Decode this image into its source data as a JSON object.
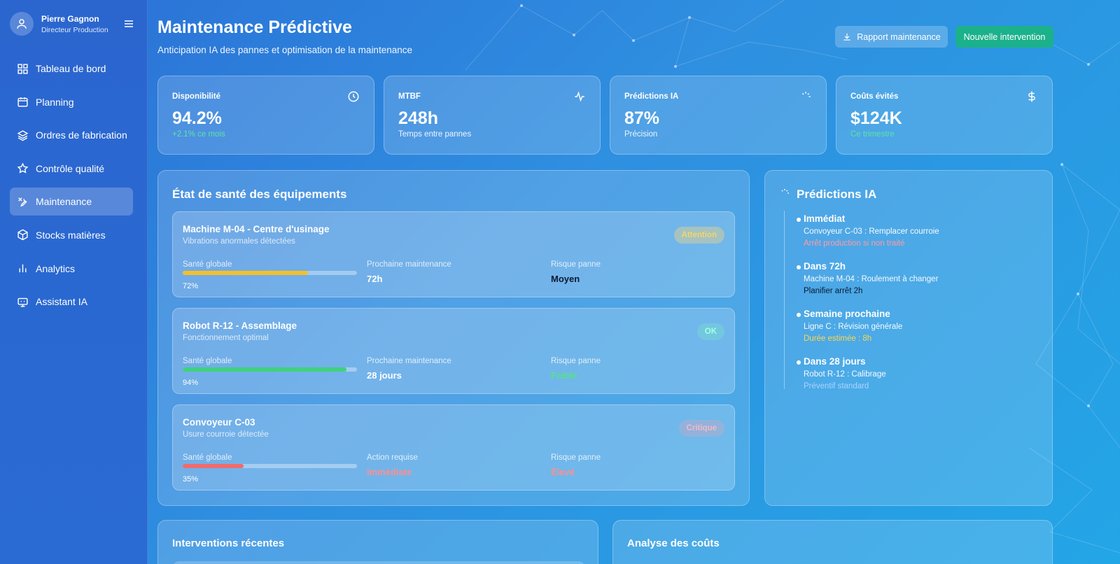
{
  "user": {
    "name": "Pierre Gagnon",
    "role": "Directeur Production"
  },
  "nav": [
    {
      "label": "Tableau de bord",
      "icon": "grid-icon"
    },
    {
      "label": "Planning",
      "icon": "calendar-icon"
    },
    {
      "label": "Ordres de fabrication",
      "icon": "layers-icon"
    },
    {
      "label": "Contrôle qualité",
      "icon": "star-icon"
    },
    {
      "label": "Maintenance",
      "icon": "wrench-icon",
      "active": true
    },
    {
      "label": "Stocks matières",
      "icon": "box-icon"
    },
    {
      "label": "Analytics",
      "icon": "bar-chart-icon"
    },
    {
      "label": "Assistant IA",
      "icon": "bot-icon"
    }
  ],
  "header": {
    "title": "Maintenance Prédictive",
    "subtitle": "Anticipation IA des pannes et optimisation de la maintenance",
    "report_button": "Rapport maintenance",
    "new_button": "Nouvelle intervention"
  },
  "stats": [
    {
      "label": "Disponibilité",
      "value": "94.2%",
      "sub": "+2.1% ce mois",
      "icon": "clock-icon"
    },
    {
      "label": "MTBF",
      "value": "248h",
      "sub": "Temps entre pannes",
      "icon": "activity-icon"
    },
    {
      "label": "Prédictions IA",
      "value": "87%",
      "sub": "Précision",
      "icon": "loader-icon"
    },
    {
      "label": "Coûts évités",
      "value": "$124K",
      "sub": "Ce trimestre",
      "icon": "dollar-icon"
    }
  ],
  "health": {
    "title": "État de santé des équipements",
    "items": [
      {
        "name": "Machine M-04 - Centre d'usinage",
        "desc": "Vibrations anormales détectées",
        "badge": "Attention",
        "health_label": "Santé globale",
        "health": 0.72,
        "health_text": "72%",
        "mid_label": "Prochaine maintenance",
        "mid_value": "72h",
        "risk_label": "Risque panne",
        "risk_value": "Moyen"
      },
      {
        "name": "Robot R-12 - Assemblage",
        "desc": "Fonctionnement optimal",
        "badge": "OK",
        "health_label": "Santé globale",
        "health": 0.94,
        "health_text": "94%",
        "mid_label": "Prochaine maintenance",
        "mid_value": "28 jours",
        "risk_label": "Risque panne",
        "risk_value": "Faible"
      },
      {
        "name": "Convoyeur C-03",
        "desc": "Usure courroie détectée",
        "badge": "Critique",
        "health_label": "Santé globale",
        "health": 0.35,
        "health_text": "35%",
        "mid_label": "Action requise",
        "mid_value": "Immédiate",
        "risk_label": "Risque panne",
        "risk_value": "Élevé"
      }
    ]
  },
  "predictions": {
    "title": "Prédictions IA",
    "items": [
      {
        "when": "Immédiat",
        "what": "Convoyeur C-03 : Remplacer courroie",
        "note": "Arrêt production si non traité",
        "note_color": "#ff9aa8"
      },
      {
        "when": "Dans 72h",
        "what": "Machine M-04 : Roulement à changer",
        "note": "Planifier arrêt 2h",
        "note_color": "#0b1a33"
      },
      {
        "when": "Semaine prochaine",
        "what": "Ligne C : Révision générale",
        "note": "Durée estimée : 8h",
        "note_color": "#ffd54a"
      },
      {
        "when": "Dans 28 jours",
        "what": "Robot R-12 : Calibrage",
        "note": "Préventif standard",
        "note_color": "#a9d4ff"
      }
    ]
  },
  "bottom": {
    "interventions_title": "Interventions récentes",
    "costs_title": "Analyse des coûts"
  },
  "colors": {
    "accent_green": "#1bb18b",
    "bar_yellow": "#f5c02a",
    "bar_green": "#3fd27c",
    "bar_red": "#f06b6b",
    "risk_low": "#58e08c",
    "risk_high": "#ff8f8f"
  }
}
